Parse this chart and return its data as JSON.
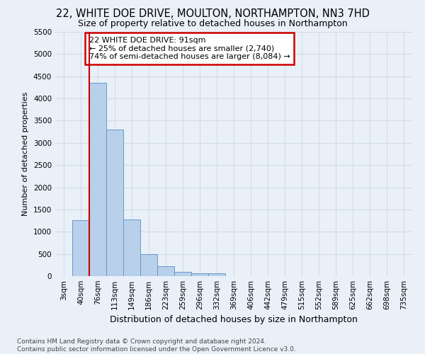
{
  "title": "22, WHITE DOE DRIVE, MOULTON, NORTHAMPTON, NN3 7HD",
  "subtitle": "Size of property relative to detached houses in Northampton",
  "xlabel": "Distribution of detached houses by size in Northampton",
  "ylabel": "Number of detached properties",
  "footer_line1": "Contains HM Land Registry data © Crown copyright and database right 2024.",
  "footer_line2": "Contains public sector information licensed under the Open Government Licence v3.0.",
  "bar_labels": [
    "3sqm",
    "40sqm",
    "76sqm",
    "113sqm",
    "149sqm",
    "186sqm",
    "223sqm",
    "259sqm",
    "296sqm",
    "332sqm",
    "369sqm",
    "406sqm",
    "442sqm",
    "479sqm",
    "515sqm",
    "552sqm",
    "589sqm",
    "625sqm",
    "662sqm",
    "698sqm",
    "735sqm"
  ],
  "bar_values": [
    0,
    1260,
    4350,
    3300,
    1280,
    490,
    220,
    90,
    60,
    60,
    0,
    0,
    0,
    0,
    0,
    0,
    0,
    0,
    0,
    0,
    0
  ],
  "bar_color": "#b8d0ea",
  "bar_edge_color": "#6699cc",
  "ylim_max": 5500,
  "yticks": [
    0,
    500,
    1000,
    1500,
    2000,
    2500,
    3000,
    3500,
    4000,
    4500,
    5000,
    5500
  ],
  "property_line_color": "#cc0000",
  "property_line_x": 1.5,
  "annotation_line1": "22 WHITE DOE DRIVE: 91sqm",
  "annotation_line2": "← 25% of detached houses are smaller (2,740)",
  "annotation_line3": "74% of semi-detached houses are larger (8,084) →",
  "annotation_box_facecolor": "white",
  "annotation_box_edgecolor": "#cc0000",
  "bg_color": "#eaf0f8",
  "grid_color": "#d0dce8",
  "title_fontsize": 10.5,
  "subtitle_fontsize": 9,
  "ylabel_fontsize": 8,
  "xlabel_fontsize": 9,
  "tick_fontsize": 7.5,
  "annotation_fontsize": 8,
  "footer_fontsize": 6.5
}
